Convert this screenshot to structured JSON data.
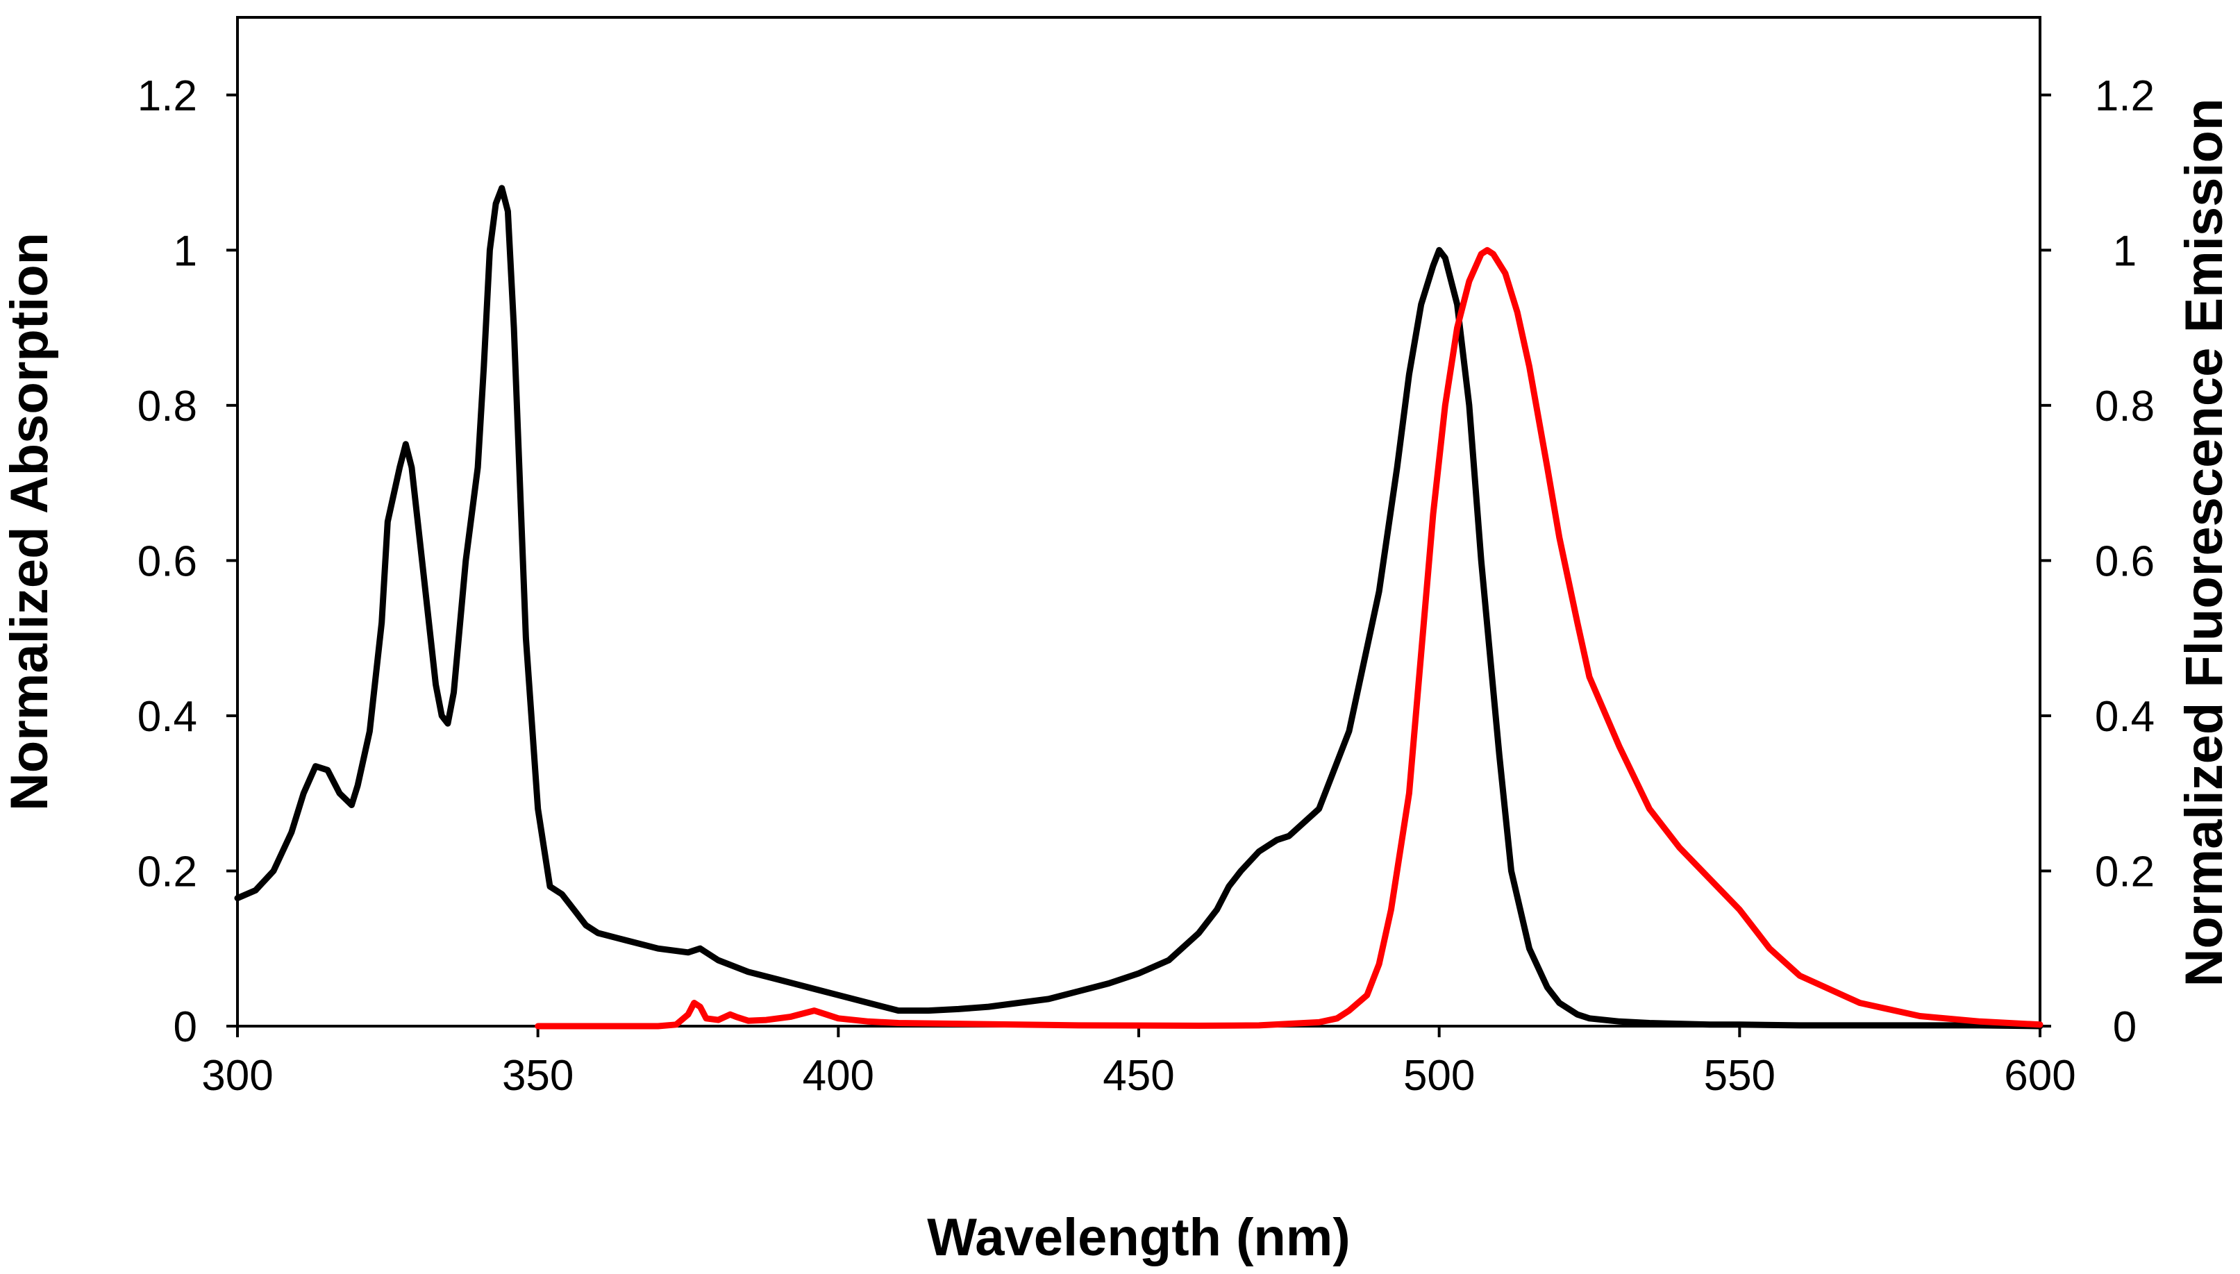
{
  "chart_data": {
    "type": "line",
    "title": "",
    "xlabel": "Wavelength (nm)",
    "ylabel_left": "Normalized Absorption",
    "ylabel_right": "Normalized Fluorescence Emission",
    "xlim": [
      300,
      600
    ],
    "ylim_left": [
      0,
      1.3
    ],
    "ylim_right": [
      0,
      1.3
    ],
    "x_ticks": [
      "300",
      "350",
      "400",
      "450",
      "500",
      "550",
      "600"
    ],
    "y_ticks_left": [
      "0",
      "0.2",
      "0.4",
      "0.6",
      "0.8",
      "1",
      "1.2"
    ],
    "y_ticks_right": [
      "0",
      "0.2",
      "0.4",
      "0.6",
      "0.8",
      "1",
      "1.2"
    ],
    "grid": false,
    "legend": "none",
    "series": [
      {
        "name": "Absorption",
        "axis": "left",
        "color": "#000000",
        "x": [
          300,
          303,
          306,
          309,
          311,
          313,
          315,
          317,
          319,
          320,
          322,
          324,
          325,
          327,
          328,
          329,
          331,
          333,
          334,
          335,
          336,
          338,
          340,
          341,
          342,
          343,
          344,
          345,
          346,
          348,
          350,
          352,
          354,
          356,
          358,
          360,
          365,
          370,
          375,
          377,
          380,
          385,
          390,
          395,
          400,
          405,
          410,
          415,
          420,
          425,
          430,
          435,
          440,
          445,
          450,
          455,
          460,
          463,
          465,
          467,
          470,
          473,
          475,
          480,
          485,
          490,
          493,
          495,
          497,
          499,
          500,
          501,
          503,
          505,
          507,
          510,
          512,
          515,
          518,
          520,
          523,
          525,
          530,
          535,
          540,
          545,
          550,
          560,
          570,
          580,
          590,
          600
        ],
        "y": [
          0.165,
          0.175,
          0.2,
          0.25,
          0.3,
          0.335,
          0.33,
          0.3,
          0.285,
          0.31,
          0.38,
          0.52,
          0.65,
          0.72,
          0.75,
          0.72,
          0.58,
          0.44,
          0.4,
          0.39,
          0.43,
          0.6,
          0.72,
          0.85,
          1.0,
          1.06,
          1.08,
          1.05,
          0.9,
          0.5,
          0.28,
          0.18,
          0.17,
          0.15,
          0.13,
          0.12,
          0.11,
          0.1,
          0.095,
          0.1,
          0.085,
          0.07,
          0.06,
          0.05,
          0.04,
          0.03,
          0.02,
          0.02,
          0.022,
          0.025,
          0.03,
          0.035,
          0.045,
          0.055,
          0.068,
          0.085,
          0.12,
          0.15,
          0.18,
          0.2,
          0.225,
          0.24,
          0.245,
          0.28,
          0.38,
          0.56,
          0.72,
          0.84,
          0.93,
          0.98,
          1.0,
          0.99,
          0.93,
          0.8,
          0.6,
          0.35,
          0.2,
          0.1,
          0.05,
          0.03,
          0.015,
          0.01,
          0.006,
          0.004,
          0.003,
          0.002,
          0.002,
          0.001,
          0.001,
          0.001,
          0.001,
          0.0
        ]
      },
      {
        "name": "Fluorescence Emission",
        "axis": "right",
        "color": "#ff0000",
        "x": [
          350,
          360,
          370,
          373,
          375,
          376,
          377,
          378,
          380,
          382,
          383,
          385,
          388,
          392,
          396,
          398,
          400,
          405,
          410,
          420,
          440,
          460,
          470,
          480,
          483,
          485,
          488,
          490,
          492,
          495,
          497,
          499,
          501,
          503,
          505,
          507,
          508,
          509,
          511,
          513,
          515,
          518,
          520,
          523,
          525,
          530,
          535,
          540,
          545,
          550,
          555,
          560,
          570,
          580,
          590,
          600
        ],
        "y": [
          0,
          0,
          0,
          0.002,
          0.015,
          0.03,
          0.025,
          0.01,
          0.008,
          0.015,
          0.012,
          0.007,
          0.008,
          0.012,
          0.02,
          0.015,
          0.01,
          0.006,
          0.004,
          0.003,
          0.001,
          0.0005,
          0.001,
          0.005,
          0.01,
          0.02,
          0.04,
          0.08,
          0.15,
          0.3,
          0.48,
          0.66,
          0.8,
          0.9,
          0.96,
          0.995,
          1.0,
          0.995,
          0.97,
          0.92,
          0.85,
          0.72,
          0.63,
          0.52,
          0.45,
          0.36,
          0.28,
          0.23,
          0.19,
          0.15,
          0.1,
          0.065,
          0.03,
          0.013,
          0.006,
          0.002
        ]
      }
    ]
  }
}
